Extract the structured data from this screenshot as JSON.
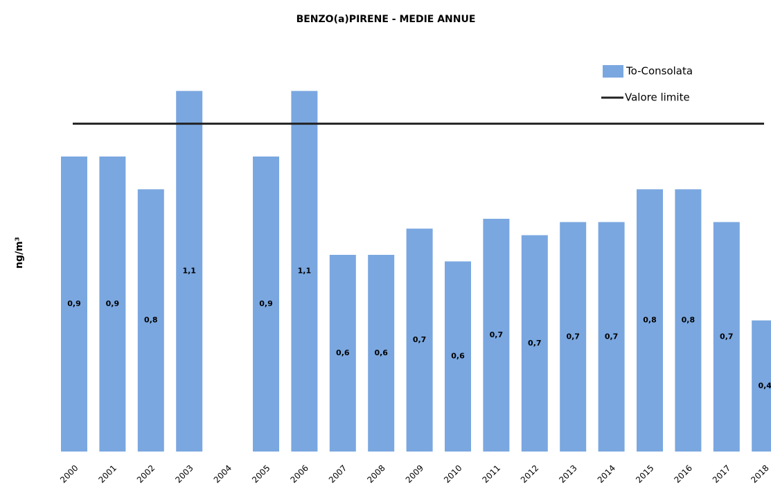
{
  "chart_data": {
    "type": "bar",
    "title": "BENZO(a)PIRENE - MEDIE ANNUE",
    "y_label": "ng/m³",
    "categories": [
      "2000",
      "2001",
      "2002",
      "2003",
      "2004",
      "2005",
      "2006",
      "2007",
      "2008",
      "2009",
      "2010",
      "2011",
      "2012",
      "2013",
      "2014",
      "2015",
      "2016",
      "2017",
      "2018"
    ],
    "series": [
      {
        "name": "To-Consolata",
        "color": "#7aa7e0",
        "values": [
          0.9,
          0.9,
          0.8,
          1.1,
          null,
          0.9,
          1.1,
          0.6,
          0.6,
          0.68,
          0.58,
          0.71,
          0.66,
          0.7,
          0.7,
          0.8,
          0.8,
          0.7,
          0.4
        ],
        "value_labels": [
          "0,9",
          "0,9",
          "0,8",
          "1,1",
          null,
          "0,9",
          "1,1",
          "0,6",
          "0,6",
          "0,7",
          "0,6",
          "0,7",
          "0,7",
          "0,7",
          "0,7",
          "0,8",
          "0,8",
          "0,7",
          "0,4"
        ]
      }
    ],
    "limit": {
      "name": "Valore limite",
      "value": 1,
      "color": "#222222"
    },
    "ylim": [
      0,
      1.2
    ]
  }
}
